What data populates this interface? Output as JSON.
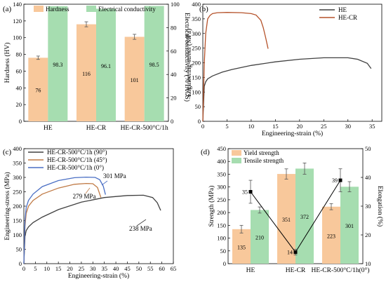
{
  "chart_data": [
    {
      "panel": "(a)",
      "type": "bar",
      "categories": [
        "HE",
        "HE-CR",
        "HE-CR-500°C/1h"
      ],
      "series": [
        {
          "name": "Hardness",
          "values": [
            76,
            116,
            101
          ],
          "errors": [
            2,
            3,
            3
          ],
          "color": "#f8c89b",
          "axis": "left"
        },
        {
          "name": "Electrical conductivity",
          "values": [
            98.3,
            96.1,
            98.5
          ],
          "color": "#a6ddb0",
          "axis": "right"
        }
      ],
      "value_labels": [
        [
          "76",
          "116",
          "101"
        ],
        [
          "98.3",
          "96.1",
          "98.5"
        ]
      ],
      "ylabel": "Hardness (HV)",
      "ylabel_right": "Electrical conductivity (% IACS)",
      "ylim": [
        0,
        140
      ],
      "yticks": [
        "0",
        "20",
        "40",
        "60",
        "80",
        "100",
        "120",
        "140"
      ],
      "ylim_right": [
        0,
        100
      ],
      "yticks_right": [
        "0",
        "20",
        "40",
        "60",
        "80",
        "100"
      ],
      "legend": "top"
    },
    {
      "panel": "(b)",
      "type": "line",
      "xlabel": "Engineering-strain (%)",
      "ylabel": "Engineering-stress (MPa)",
      "xlim": [
        0,
        37
      ],
      "xticks": [
        "0",
        "5",
        "10",
        "15",
        "20",
        "25",
        "30",
        "35"
      ],
      "ylim": [
        0,
        400
      ],
      "yticks": [
        "0",
        "50",
        "100",
        "150",
        "200",
        "250",
        "300",
        "350",
        "400"
      ],
      "series": [
        {
          "name": "HE",
          "color": "#404040",
          "x": [
            0,
            0.3,
            0.6,
            1,
            2,
            4,
            6,
            10,
            15,
            20,
            25,
            30,
            32,
            34,
            34.8
          ],
          "y": [
            0,
            120,
            135,
            145,
            155,
            168,
            177,
            191,
            203,
            212,
            217,
            217,
            212,
            198,
            180
          ]
        },
        {
          "name": "HE-CR",
          "color": "#b5522a",
          "x": [
            0,
            0.3,
            0.6,
            1,
            1.5,
            2,
            3,
            5,
            8,
            10,
            11,
            12,
            12.5,
            13,
            13.5
          ],
          "y": [
            0,
            200,
            300,
            350,
            362,
            368,
            371,
            372,
            371,
            368,
            363,
            345,
            320,
            285,
            248
          ]
        }
      ],
      "legend": "top-right"
    },
    {
      "panel": "(c)",
      "type": "line",
      "xlabel": "Engineering-strain (%)",
      "ylabel": "Engineering-stress (MPa)",
      "xlim": [
        0,
        65
      ],
      "xticks": [
        "0",
        "5",
        "10",
        "15",
        "20",
        "25",
        "30",
        "35",
        "40",
        "45",
        "50",
        "55",
        "60",
        "65"
      ],
      "ylim": [
        0,
        400
      ],
      "yticks": [
        "0",
        "50",
        "100",
        "150",
        "200",
        "250",
        "300",
        "350",
        "400"
      ],
      "series": [
        {
          "name": "HE-CR-500°C/1h  (90°)",
          "color": "#404040",
          "x": [
            0,
            0.5,
            1,
            2,
            4,
            8,
            15,
            25,
            35,
            45,
            52,
            56,
            58,
            59.5
          ],
          "y": [
            0,
            95,
            115,
            128,
            143,
            162,
            188,
            214,
            230,
            237,
            238,
            230,
            212,
            185
          ]
        },
        {
          "name": "HE-CR-500°C/1h  (45°)",
          "color": "#c07a45",
          "x": [
            0,
            0.5,
            1,
            2,
            4,
            8,
            15,
            22,
            27,
            30,
            32,
            33.5
          ],
          "y": [
            0,
            130,
            175,
            200,
            220,
            242,
            263,
            276,
            279,
            278,
            265,
            230
          ]
        },
        {
          "name": "HE-CR-500°C/1h  (0°)",
          "color": "#4a6fc4",
          "x": [
            0,
            0.5,
            1,
            2,
            4,
            8,
            15,
            22,
            27,
            31,
            33,
            34.5,
            35.5
          ],
          "y": [
            0,
            150,
            195,
            220,
            242,
            268,
            289,
            299,
            301,
            300,
            292,
            270,
            240
          ]
        }
      ],
      "annotations": [
        {
          "text": "301 MPa",
          "color": "#4a6fc4"
        },
        {
          "text": "279 MPa",
          "color": "#c07a45"
        },
        {
          "text": "238 MPa",
          "color": "#404040"
        }
      ],
      "legend": "top-left"
    },
    {
      "panel": "(d)",
      "type": "bar",
      "categories": [
        "HE",
        "HE-CR",
        "HE-CR-500°C/1h(0°)"
      ],
      "series": [
        {
          "name": "Yield strength",
          "values": [
            135,
            351,
            223
          ],
          "errors": [
            15,
            20,
            12
          ],
          "color": "#f8c89b",
          "axis": "left"
        },
        {
          "name": "Tensile strength",
          "values": [
            210,
            372,
            301
          ],
          "errors": [
            12,
            22,
            20
          ],
          "color": "#a6ddb0",
          "axis": "left"
        },
        {
          "name": "Elongation",
          "values": [
            35,
            14,
            39
          ],
          "errors": [
            4,
            1,
            4
          ],
          "color": "#000000",
          "axis": "right",
          "type": "line"
        }
      ],
      "value_labels": [
        [
          "135",
          "351",
          "223"
        ],
        [
          "210",
          "372",
          "301"
        ],
        [
          "35",
          "14",
          "39"
        ]
      ],
      "ylabel": "Strength (MPa)",
      "ylabel_right": "Elongation (%)",
      "ylim": [
        0,
        450
      ],
      "yticks": [
        "0",
        "50",
        "100",
        "150",
        "200",
        "250",
        "300",
        "350",
        "400",
        "450"
      ],
      "ylim_right": [
        10,
        50
      ],
      "yticks_right": [
        "10",
        "20",
        "30",
        "40",
        "50"
      ],
      "legend": "top-left"
    }
  ]
}
